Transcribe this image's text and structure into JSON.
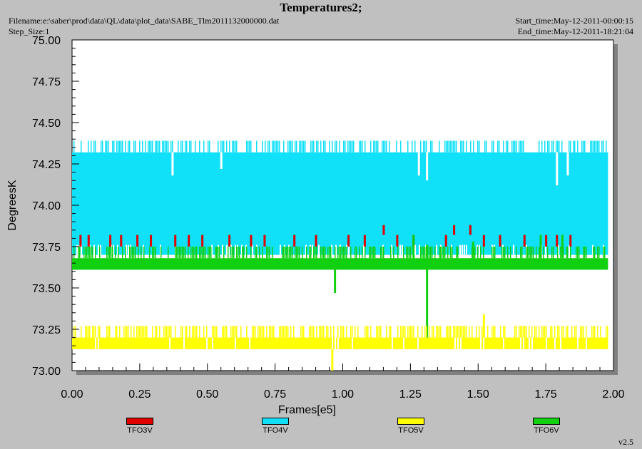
{
  "header": {
    "title": "Temperatures2;",
    "filename": "Filename:e:\\saber\\prod\\data\\QL\\data\\plot_data\\SABE_Tlm2011132000000.dat",
    "step_size": "Step_Size:1",
    "start_time": "Start_time:May-12-2011-00:00:15",
    "end_time": "End_time:May-12-2011-18:21:04"
  },
  "version": "v2.5",
  "colors": {
    "TFO3V": "#e00000",
    "TFO4V": "#10e0f8",
    "TFO5V": "#ffff00",
    "TFO6V": "#10d010",
    "plot_background": "#ffffff",
    "page_background": "#c0c0c0"
  },
  "chart_data": {
    "type": "line",
    "title": "Temperatures2;",
    "xlabel": "Frames[e5]",
    "ylabel": "DegreesK",
    "xlim": [
      0.0,
      2.0
    ],
    "ylim": [
      73.0,
      75.0
    ],
    "x_ticks": [
      "0.00",
      "0.25",
      "0.50",
      "0.75",
      "1.00",
      "1.25",
      "1.50",
      "1.75",
      "2.00"
    ],
    "y_ticks": [
      "73.00",
      "73.25",
      "73.50",
      "73.75",
      "74.00",
      "74.25",
      "74.50",
      "74.75",
      "75.00"
    ],
    "grid": false,
    "legend_position": "bottom",
    "x_data_range": [
      0.0,
      1.98
    ],
    "series": [
      {
        "name": "TFO3V",
        "band": [
          73.75,
          73.82
        ],
        "spikes": [
          {
            "x": 0.03,
            "y": 73.82
          },
          {
            "x": 0.06,
            "y": 73.82
          },
          {
            "x": 0.14,
            "y": 73.82
          },
          {
            "x": 0.18,
            "y": 73.82
          },
          {
            "x": 0.24,
            "y": 73.82
          },
          {
            "x": 0.29,
            "y": 73.82
          },
          {
            "x": 0.38,
            "y": 73.82
          },
          {
            "x": 0.43,
            "y": 73.82
          },
          {
            "x": 0.48,
            "y": 73.82
          },
          {
            "x": 0.58,
            "y": 73.82
          },
          {
            "x": 0.66,
            "y": 73.82
          },
          {
            "x": 0.71,
            "y": 73.82
          },
          {
            "x": 0.82,
            "y": 73.82
          },
          {
            "x": 0.9,
            "y": 73.82
          },
          {
            "x": 1.02,
            "y": 73.82
          },
          {
            "x": 1.08,
            "y": 73.82
          },
          {
            "x": 1.15,
            "y": 73.88
          },
          {
            "x": 1.2,
            "y": 73.82
          },
          {
            "x": 1.26,
            "y": 73.82
          },
          {
            "x": 1.38,
            "y": 73.82
          },
          {
            "x": 1.41,
            "y": 73.88
          },
          {
            "x": 1.47,
            "y": 73.88
          },
          {
            "x": 1.52,
            "y": 73.82
          },
          {
            "x": 1.58,
            "y": 73.82
          },
          {
            "x": 1.67,
            "y": 73.82
          },
          {
            "x": 1.75,
            "y": 73.82
          },
          {
            "x": 1.79,
            "y": 73.82
          },
          {
            "x": 1.84,
            "y": 73.82
          }
        ]
      },
      {
        "name": "TFO4V",
        "band": [
          73.7,
          74.32
        ],
        "range_top": 74.39,
        "dips": [
          {
            "x": 0.37,
            "y": 74.18
          },
          {
            "x": 0.55,
            "y": 74.22
          },
          {
            "x": 1.28,
            "y": 74.18
          },
          {
            "x": 1.31,
            "y": 74.15
          },
          {
            "x": 1.79,
            "y": 74.12
          },
          {
            "x": 1.83,
            "y": 74.18
          }
        ]
      },
      {
        "name": "TFO5V",
        "band": [
          73.13,
          73.2
        ],
        "range_top": 73.27,
        "spikes": [
          {
            "x": 1.52,
            "y": 73.34
          },
          {
            "x": 0.96,
            "y": 73.0
          }
        ]
      },
      {
        "name": "TFO6V",
        "band": [
          73.61,
          73.68
        ],
        "range_top": 73.75,
        "spikes": [
          {
            "x": 0.97,
            "y": 73.47
          },
          {
            "x": 1.31,
            "y": 73.13
          },
          {
            "x": 1.26,
            "y": 73.82
          },
          {
            "x": 1.31,
            "y": 73.76
          },
          {
            "x": 1.48,
            "y": 73.78
          },
          {
            "x": 1.73,
            "y": 73.82
          },
          {
            "x": 1.81,
            "y": 73.82
          }
        ]
      }
    ]
  }
}
